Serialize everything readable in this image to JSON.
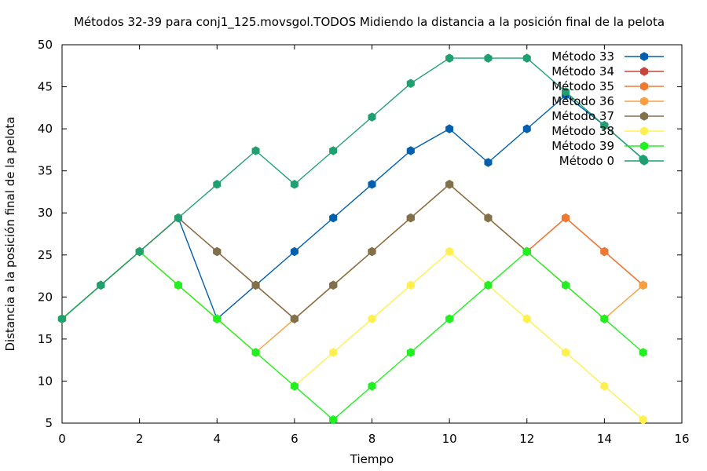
{
  "chart_data": {
    "type": "line",
    "title": "Métodos 32-39 para conj1_125.movsgol.TODOS Midiendo la distancia a la posición final de la pelota",
    "xlabel": "Tiempo",
    "ylabel": "Distancia a la posición final de la pelota",
    "xlim": [
      0,
      16
    ],
    "ylim": [
      5,
      50
    ],
    "xticks": [
      0,
      2,
      4,
      6,
      8,
      10,
      12,
      14,
      16
    ],
    "yticks": [
      5,
      10,
      15,
      20,
      25,
      30,
      35,
      40,
      45,
      50
    ],
    "grid": false,
    "legend_position": "top-right",
    "series": [
      {
        "name": "Método 33",
        "color": "#0060ad",
        "marker": "hexagon",
        "x": [
          0,
          1,
          2,
          3,
          4,
          5,
          6,
          7,
          8,
          9,
          10,
          11,
          12,
          13,
          14,
          15
        ],
        "y": [
          17.4,
          21.4,
          25.4,
          29.4,
          17.4,
          21.4,
          25.4,
          29.4,
          33.4,
          37.4,
          40.0,
          36.0,
          40.0,
          44.0,
          40.4,
          36.4
        ]
      },
      {
        "name": "Método 34",
        "color": "#c8433c",
        "marker": "hexagon",
        "x": [
          0,
          1,
          2,
          3,
          4,
          5,
          6,
          7,
          8,
          9,
          10,
          11,
          12,
          13,
          14,
          15
        ],
        "y": [
          17.4,
          21.4,
          25.4,
          29.4,
          25.4,
          21.4,
          17.4,
          21.4,
          25.4,
          29.4,
          33.4,
          29.4,
          25.4,
          29.4,
          25.4,
          21.4
        ]
      },
      {
        "name": "Método 35",
        "color": "#f07830",
        "marker": "hexagon",
        "x": [
          0,
          1,
          2,
          3,
          4,
          5,
          6,
          7,
          8,
          9,
          10,
          11,
          12,
          13,
          14,
          15
        ],
        "y": [
          17.4,
          21.4,
          25.4,
          29.4,
          25.4,
          21.4,
          17.4,
          21.4,
          25.4,
          29.4,
          33.4,
          29.4,
          25.4,
          29.4,
          25.4,
          21.4
        ]
      },
      {
        "name": "Método 36",
        "color": "#f8a040",
        "marker": "hexagon",
        "x": [
          0,
          1,
          2,
          3,
          4,
          5,
          6,
          7,
          8,
          9,
          10,
          11,
          12,
          13,
          14,
          15
        ],
        "y": [
          17.4,
          21.4,
          25.4,
          21.4,
          17.4,
          13.4,
          17.4,
          21.4,
          25.4,
          29.4,
          33.4,
          29.4,
          25.4,
          21.4,
          17.4,
          21.4
        ]
      },
      {
        "name": "Método 37",
        "color": "#80704c",
        "marker": "hexagon",
        "x": [
          0,
          1,
          2,
          3,
          4,
          5,
          6,
          7,
          8,
          9,
          10,
          11,
          12
        ],
        "y": [
          17.4,
          21.4,
          25.4,
          29.4,
          25.4,
          21.4,
          17.4,
          21.4,
          25.4,
          29.4,
          33.4,
          29.4,
          25.4
        ]
      },
      {
        "name": "Método 38",
        "color": "#fff050",
        "marker": "hexagon",
        "x": [
          0,
          1,
          2,
          3,
          4,
          5,
          6,
          7,
          8,
          9,
          10,
          11,
          12,
          13,
          14,
          15
        ],
        "y": [
          17.4,
          21.4,
          25.4,
          21.4,
          17.4,
          13.4,
          9.4,
          13.4,
          17.4,
          21.4,
          25.4,
          21.4,
          17.4,
          13.4,
          9.4,
          5.4
        ]
      },
      {
        "name": "Método 39",
        "color": "#20f020",
        "marker": "hexagon",
        "x": [
          0,
          1,
          2,
          3,
          4,
          5,
          6,
          7,
          8,
          9,
          10,
          11,
          12,
          13,
          14,
          15
        ],
        "y": [
          17.4,
          21.4,
          25.4,
          21.4,
          17.4,
          13.4,
          9.4,
          5.4,
          9.4,
          13.4,
          17.4,
          21.4,
          25.4,
          21.4,
          17.4,
          13.4
        ]
      },
      {
        "name": "Método 0",
        "color": "#20a070",
        "marker": "hexagon",
        "x": [
          0,
          1,
          2,
          3,
          4,
          5,
          6,
          7,
          8,
          9,
          10,
          11,
          12,
          13,
          14,
          15
        ],
        "y": [
          17.4,
          21.4,
          25.4,
          29.4,
          33.4,
          37.4,
          33.4,
          37.4,
          41.4,
          45.4,
          48.4,
          48.4,
          48.4,
          44.4,
          40.4,
          36.4
        ]
      }
    ]
  }
}
